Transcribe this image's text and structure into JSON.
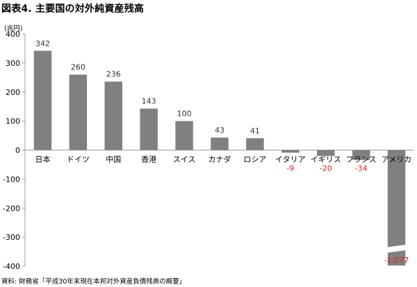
{
  "title": "図表4. 主要国の対外純資産残高",
  "unit": "(兆円)",
  "source": "資料: 財務省「平成30年末現在本邦対外資産負債残高の概要」",
  "colors": {
    "bar": "#808080",
    "negative_label": "#e02020",
    "positive_label": "#333333",
    "axis": "#999999"
  },
  "chart_data": {
    "type": "bar",
    "title": "図表4. 主要国の対外純資産残高",
    "ylabel": "(兆円)",
    "xlabel": "",
    "ylim": [
      -400,
      400
    ],
    "yticks": [
      400,
      300,
      200,
      100,
      0,
      -100,
      -200,
      -300,
      -400
    ],
    "grid": false,
    "categories": [
      "日本",
      "ドイツ",
      "中国",
      "香港",
      "スイス",
      "カナダ",
      "ロシア",
      "イタリア",
      "イギリス",
      "フランス",
      "アメリカ"
    ],
    "values": [
      342,
      260,
      236,
      143,
      100,
      43,
      41,
      -9,
      -20,
      -34,
      -1077
    ],
    "data_labels": [
      "342",
      "260",
      "236",
      "143",
      "100",
      "43",
      "41",
      "-9",
      "-20",
      "-34",
      "-1,077"
    ],
    "axis_break": {
      "category": "アメリカ"
    }
  }
}
